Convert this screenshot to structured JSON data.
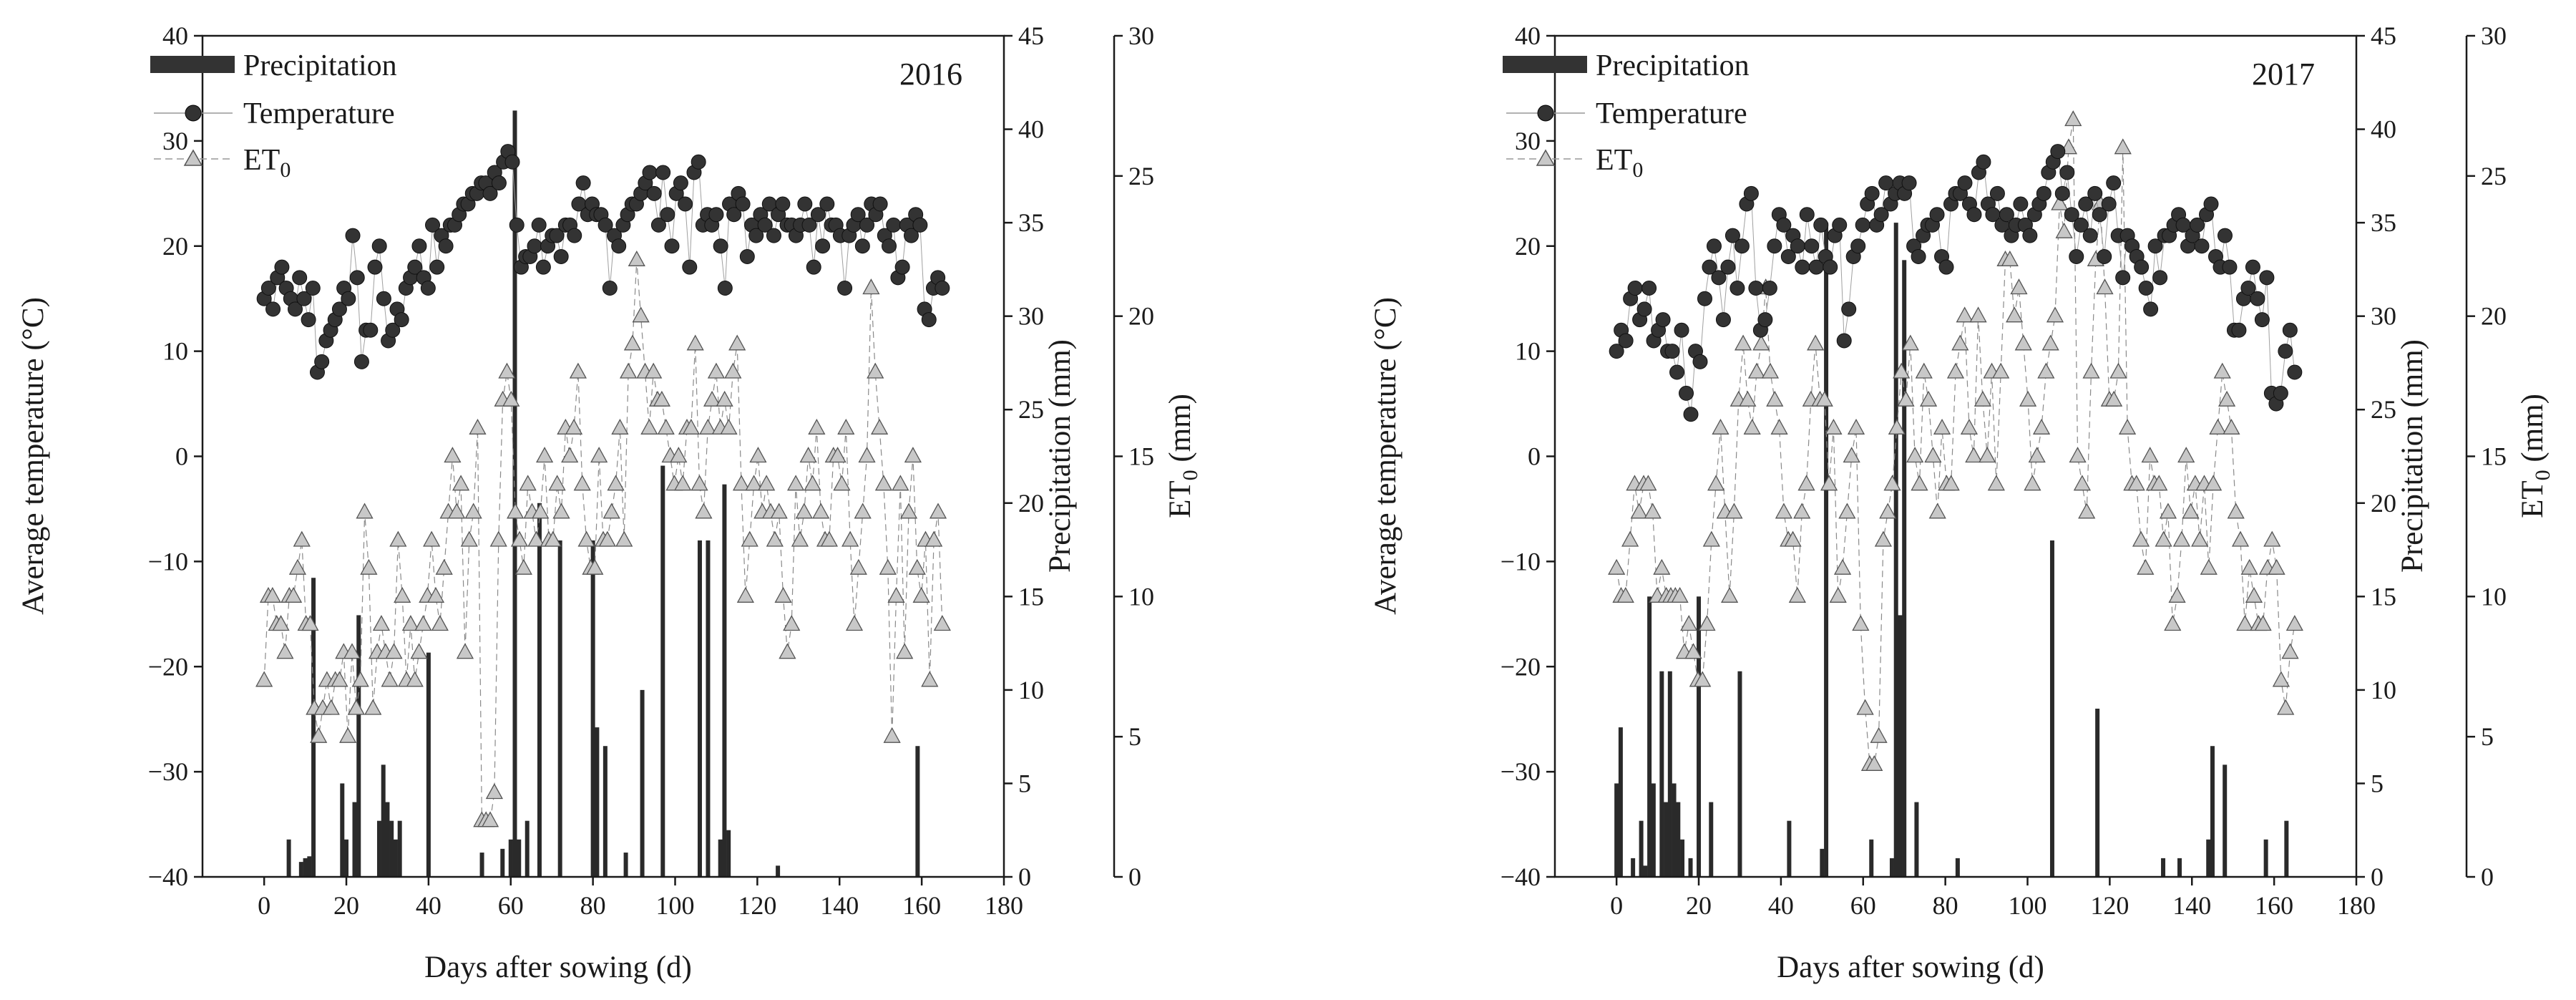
{
  "chart_data": [
    {
      "type": "bar+scatter",
      "year": "2016",
      "xlabel": "Days after sowing (d)",
      "ylabel_left": "Average temperature (°C)",
      "ylabel_right1": "Precipitation (mm)",
      "ylabel_right2_main": "ET",
      "ylabel_right2_sub": "0",
      "ylabel_right2_unit": " (mm)",
      "xlim": [
        -15,
        180
      ],
      "xticks": [
        "0",
        "20",
        "40",
        "60",
        "80",
        "100",
        "120",
        "140",
        "160",
        "180"
      ],
      "ylim_temp": [
        -40,
        40
      ],
      "yticks_temp": [
        "−40",
        "−30",
        "−20",
        "−10",
        "0",
        "10",
        "20",
        "30",
        "40"
      ],
      "ylim_precip": [
        0,
        45
      ],
      "yticks_precip": [
        "0",
        "5",
        "10",
        "15",
        "20",
        "25",
        "30",
        "35",
        "40",
        "45"
      ],
      "ylim_et0": [
        0,
        30
      ],
      "yticks_et0": [
        "0",
        "5",
        "10",
        "15",
        "20",
        "25",
        "30"
      ],
      "legend": {
        "precip": "Precipitation",
        "temp": "Temperature",
        "et0_main": "ET",
        "et0_sub": "0"
      },
      "temperature": [
        15,
        16,
        14,
        17,
        18,
        16,
        15,
        14,
        17,
        15,
        13,
        16,
        8,
        9,
        11,
        12,
        13,
        14,
        16,
        15,
        21,
        17,
        9,
        12,
        12,
        18,
        20,
        15,
        11,
        12,
        14,
        13,
        16,
        17,
        18,
        20,
        17,
        16,
        22,
        18,
        21,
        20,
        22,
        22,
        23,
        24,
        24,
        25,
        25,
        26,
        26,
        25,
        27,
        26,
        28,
        29,
        28,
        22,
        18,
        19,
        19,
        20,
        22,
        18,
        20,
        21,
        21,
        19,
        22,
        22,
        21,
        24,
        26,
        23,
        24,
        23,
        23,
        22,
        16,
        21,
        20,
        22,
        23,
        24,
        24,
        25,
        26,
        27,
        25,
        22,
        27,
        23,
        20,
        25,
        26,
        24,
        18,
        27,
        28,
        22,
        23,
        22,
        23,
        20,
        16,
        24,
        23,
        25,
        24,
        19,
        22,
        21,
        23,
        22,
        24,
        21,
        23,
        24,
        22,
        22,
        21,
        22,
        24,
        22,
        18,
        23,
        20,
        24,
        22,
        22,
        21,
        16,
        21,
        22,
        23,
        20,
        22,
        24,
        23,
        24,
        21,
        20,
        22,
        17,
        18,
        22,
        21,
        23,
        22,
        14,
        13,
        16,
        17,
        16
      ],
      "et0": [
        7,
        10,
        10,
        9,
        9,
        8,
        10,
        10,
        11,
        12,
        9,
        9,
        6,
        5,
        6,
        7,
        6,
        7,
        7,
        8,
        5,
        8,
        6,
        7,
        13,
        11,
        6,
        8,
        9,
        8,
        7,
        8,
        12,
        10,
        7,
        9,
        7,
        8,
        9,
        10,
        12,
        10,
        9,
        11,
        13,
        15,
        13,
        14,
        8,
        12,
        13,
        16,
        2,
        2,
        2,
        3,
        12,
        17,
        18,
        17,
        13,
        12,
        11,
        14,
        13,
        12,
        13,
        15,
        12,
        12,
        14,
        13,
        16,
        15,
        16,
        18,
        14,
        12,
        11,
        11,
        15,
        12,
        12,
        13,
        14,
        16,
        12,
        18,
        19,
        22,
        20,
        18,
        16,
        18,
        17,
        17,
        16,
        15,
        14,
        15,
        14,
        16,
        16,
        19,
        14,
        13,
        16,
        17,
        18,
        16,
        17,
        16,
        18,
        19,
        14,
        10,
        12,
        14,
        15,
        13,
        14,
        13,
        12,
        13,
        10,
        8,
        9,
        14,
        12,
        13,
        15,
        14,
        16,
        13,
        12,
        12,
        15,
        15,
        14,
        16,
        12,
        9,
        11,
        13,
        15,
        21,
        18,
        16,
        14,
        11,
        5,
        10,
        14,
        8,
        13,
        15,
        11,
        10,
        12,
        7,
        12,
        13,
        9
      ],
      "precip": [
        {
          "d": 6,
          "v": 2
        },
        {
          "d": 9,
          "v": 0.8
        },
        {
          "d": 10,
          "v": 1
        },
        {
          "d": 11,
          "v": 1.1
        },
        {
          "d": 12,
          "v": 16
        },
        {
          "d": 19,
          "v": 5
        },
        {
          "d": 20,
          "v": 2
        },
        {
          "d": 22,
          "v": 4
        },
        {
          "d": 23,
          "v": 14
        },
        {
          "d": 28,
          "v": 3
        },
        {
          "d": 29,
          "v": 6
        },
        {
          "d": 30,
          "v": 4
        },
        {
          "d": 31,
          "v": 3
        },
        {
          "d": 32,
          "v": 2
        },
        {
          "d": 33,
          "v": 3
        },
        {
          "d": 40,
          "v": 12
        },
        {
          "d": 53,
          "v": 1.3
        },
        {
          "d": 58,
          "v": 1.5
        },
        {
          "d": 60,
          "v": 2
        },
        {
          "d": 61,
          "v": 41
        },
        {
          "d": 62,
          "v": 2
        },
        {
          "d": 64,
          "v": 3
        },
        {
          "d": 67,
          "v": 20
        },
        {
          "d": 72,
          "v": 18
        },
        {
          "d": 80,
          "v": 18
        },
        {
          "d": 81,
          "v": 8
        },
        {
          "d": 83,
          "v": 7
        },
        {
          "d": 88,
          "v": 1.3
        },
        {
          "d": 92,
          "v": 10
        },
        {
          "d": 97,
          "v": 22
        },
        {
          "d": 106,
          "v": 18
        },
        {
          "d": 108,
          "v": 18
        },
        {
          "d": 111,
          "v": 2
        },
        {
          "d": 112,
          "v": 21
        },
        {
          "d": 113,
          "v": 2.5
        },
        {
          "d": 125,
          "v": 0.6
        },
        {
          "d": 159,
          "v": 7
        }
      ]
    },
    {
      "type": "bar+scatter",
      "year": "2017",
      "xlabel": "Days after sowing (d)",
      "ylabel_left": "Average temperature (°C)",
      "ylabel_right1": "Precipitation (mm)",
      "ylabel_right2_main": "ET",
      "ylabel_right2_sub": "0",
      "ylabel_right2_unit": " (mm)",
      "xlim": [
        -15,
        180
      ],
      "xticks": [
        "0",
        "20",
        "40",
        "60",
        "80",
        "100",
        "120",
        "140",
        "160",
        "180"
      ],
      "ylim_temp": [
        -40,
        40
      ],
      "yticks_temp": [
        "−40",
        "−30",
        "−20",
        "−10",
        "0",
        "10",
        "20",
        "30",
        "40"
      ],
      "ylim_precip": [
        0,
        45
      ],
      "yticks_precip": [
        "0",
        "5",
        "10",
        "15",
        "20",
        "25",
        "30",
        "35",
        "40",
        "45"
      ],
      "ylim_et0": [
        0,
        30
      ],
      "yticks_et0": [
        "0",
        "5",
        "10",
        "15",
        "20",
        "25",
        "30"
      ],
      "legend": {
        "precip": "Precipitation",
        "temp": "Temperature",
        "et0_main": "ET",
        "et0_sub": "0"
      },
      "temperature": [
        10,
        12,
        11,
        15,
        16,
        13,
        14,
        16,
        11,
        12,
        13,
        10,
        10,
        8,
        12,
        6,
        4,
        10,
        9,
        15,
        18,
        20,
        17,
        13,
        18,
        21,
        16,
        20,
        24,
        25,
        16,
        12,
        13,
        16,
        20,
        23,
        22,
        19,
        21,
        20,
        18,
        23,
        20,
        18,
        22,
        19,
        18,
        21,
        22,
        11,
        14,
        19,
        20,
        22,
        24,
        25,
        22,
        23,
        26,
        24,
        25,
        26,
        25,
        26,
        20,
        19,
        21,
        22,
        22,
        23,
        19,
        18,
        24,
        25,
        25,
        26,
        24,
        23,
        27,
        28,
        24,
        23,
        25,
        22,
        23,
        21,
        22,
        24,
        22,
        21,
        23,
        24,
        25,
        27,
        28,
        29,
        25,
        27,
        23,
        19,
        22,
        24,
        21,
        25,
        23,
        19,
        24,
        26,
        21,
        17,
        21,
        20,
        19,
        18,
        16,
        14,
        20,
        17,
        21,
        21,
        22,
        23,
        22,
        20,
        21,
        22,
        20,
        23,
        24,
        19,
        18,
        21,
        18,
        12,
        12,
        15,
        16,
        18,
        15,
        13,
        17,
        6,
        5,
        6,
        10,
        12,
        8
      ],
      "et0": [
        11,
        10,
        10,
        12,
        14,
        13,
        14,
        14,
        13,
        10,
        11,
        10,
        10,
        10,
        10,
        8,
        9,
        8,
        7,
        7,
        9,
        12,
        14,
        16,
        13,
        10,
        13,
        17,
        19,
        17,
        16,
        18,
        19,
        21,
        18,
        17,
        16,
        13,
        12,
        12,
        10,
        13,
        14,
        17,
        19,
        17,
        17,
        14,
        16,
        10,
        11,
        13,
        15,
        16,
        9,
        6,
        4,
        4,
        5,
        12,
        13,
        14,
        16,
        18,
        17,
        19,
        15,
        14,
        18,
        17,
        15,
        13,
        16,
        14,
        14,
        18,
        19,
        20,
        16,
        15,
        20,
        17,
        15,
        18,
        14,
        18,
        22,
        22,
        20,
        21,
        19,
        17,
        14,
        15,
        16,
        18,
        19,
        20,
        24,
        23,
        26,
        27,
        15,
        14,
        13,
        18,
        22,
        24,
        21,
        17,
        17,
        18,
        26,
        16,
        14,
        14,
        12,
        11,
        15,
        14,
        14,
        12,
        13,
        9,
        10,
        12,
        15,
        13,
        14,
        12,
        14,
        11,
        14,
        16,
        18,
        17,
        16,
        13,
        12,
        9,
        11,
        10,
        9,
        9,
        11,
        12,
        11,
        7,
        6,
        8,
        9
      ],
      "precip": [
        {
          "d": 0,
          "v": 5
        },
        {
          "d": 1,
          "v": 8
        },
        {
          "d": 4,
          "v": 1
        },
        {
          "d": 6,
          "v": 3
        },
        {
          "d": 7,
          "v": 0.6
        },
        {
          "d": 8,
          "v": 15
        },
        {
          "d": 9,
          "v": 5
        },
        {
          "d": 11,
          "v": 11
        },
        {
          "d": 12,
          "v": 4
        },
        {
          "d": 13,
          "v": 11
        },
        {
          "d": 14,
          "v": 5
        },
        {
          "d": 15,
          "v": 4
        },
        {
          "d": 16,
          "v": 2
        },
        {
          "d": 18,
          "v": 1
        },
        {
          "d": 20,
          "v": 15
        },
        {
          "d": 23,
          "v": 4
        },
        {
          "d": 30,
          "v": 11
        },
        {
          "d": 42,
          "v": 3
        },
        {
          "d": 50,
          "v": 1.5
        },
        {
          "d": 51,
          "v": 35
        },
        {
          "d": 62,
          "v": 2
        },
        {
          "d": 67,
          "v": 1
        },
        {
          "d": 68,
          "v": 35
        },
        {
          "d": 69,
          "v": 14
        },
        {
          "d": 70,
          "v": 33
        },
        {
          "d": 73,
          "v": 4
        },
        {
          "d": 83,
          "v": 1
        },
        {
          "d": 106,
          "v": 18
        },
        {
          "d": 117,
          "v": 9
        },
        {
          "d": 133,
          "v": 1
        },
        {
          "d": 137,
          "v": 1
        },
        {
          "d": 144,
          "v": 2
        },
        {
          "d": 145,
          "v": 7
        },
        {
          "d": 148,
          "v": 6
        },
        {
          "d": 158,
          "v": 2
        },
        {
          "d": 163,
          "v": 3
        }
      ]
    }
  ]
}
